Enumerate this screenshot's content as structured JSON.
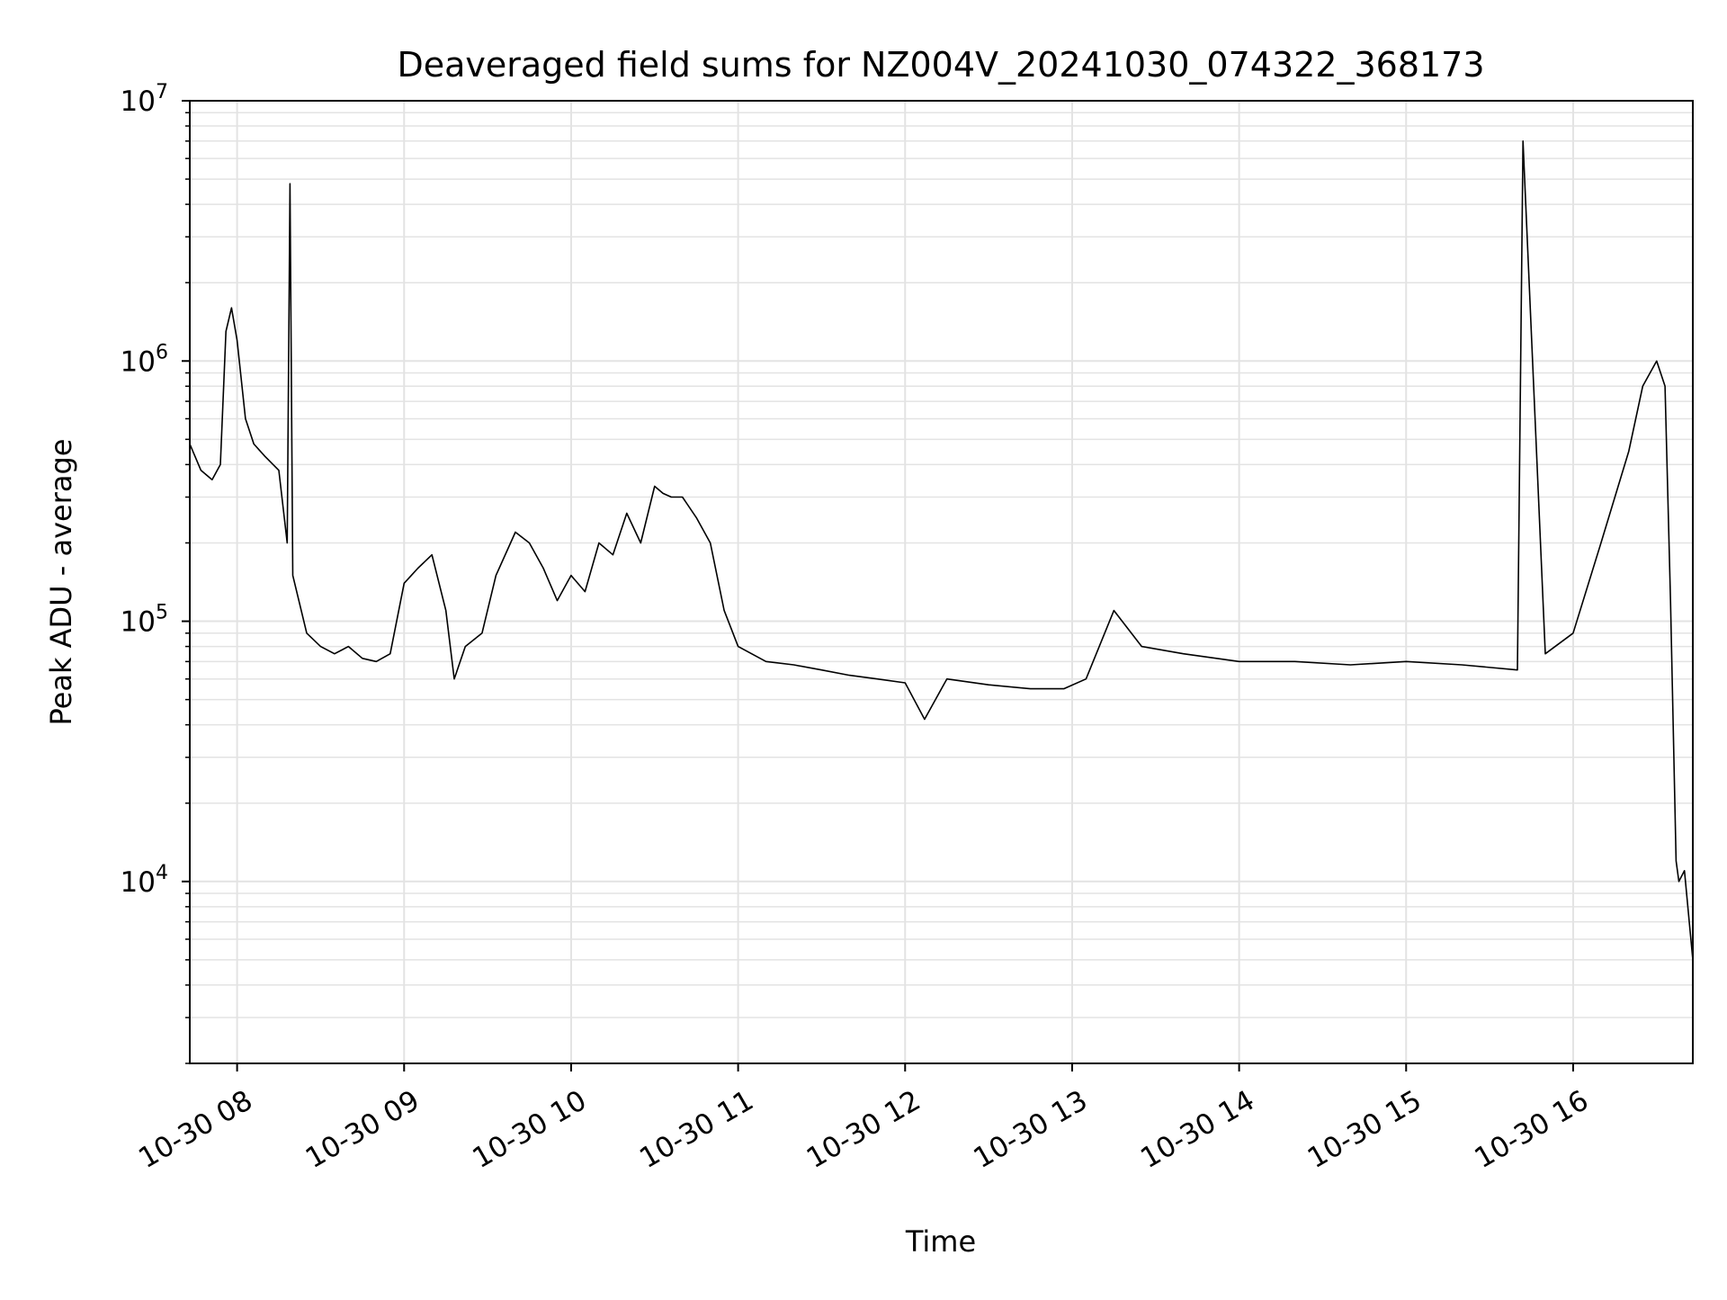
{
  "chart_data": {
    "type": "line",
    "title": "Deaveraged field sums for NZ004V_20241030_074322_368173",
    "xlabel": "Time",
    "ylabel": "Peak ADU - average",
    "y_scale": "log",
    "ylim": [
      2000,
      10000000
    ],
    "xlim": [
      "2024-10-30 07:43",
      "2024-10-30 16:43"
    ],
    "grid": true,
    "legend": "none",
    "colors": {
      "line": "#000000",
      "grid": "#e3e3e3",
      "axes": "#000000",
      "background": "#ffffff"
    },
    "x_ticks": [
      {
        "value": "2024-10-30 08:00",
        "label": "10-30 08"
      },
      {
        "value": "2024-10-30 09:00",
        "label": "10-30 09"
      },
      {
        "value": "2024-10-30 10:00",
        "label": "10-30 10"
      },
      {
        "value": "2024-10-30 11:00",
        "label": "10-30 11"
      },
      {
        "value": "2024-10-30 12:00",
        "label": "10-30 12"
      },
      {
        "value": "2024-10-30 13:00",
        "label": "10-30 13"
      },
      {
        "value": "2024-10-30 14:00",
        "label": "10-30 14"
      },
      {
        "value": "2024-10-30 15:00",
        "label": "10-30 15"
      },
      {
        "value": "2024-10-30 16:00",
        "label": "10-30 16"
      }
    ],
    "y_ticks": [
      {
        "value": 10000,
        "base": "10",
        "exp": "4"
      },
      {
        "value": 100000,
        "base": "10",
        "exp": "5"
      },
      {
        "value": 1000000,
        "base": "10",
        "exp": "6"
      },
      {
        "value": 10000000,
        "base": "10",
        "exp": "7"
      }
    ],
    "series": [
      {
        "x": [
          "2024-10-30 07:43",
          "2024-10-30 07:47",
          "2024-10-30 07:51",
          "2024-10-30 07:54",
          "2024-10-30 07:56",
          "2024-10-30 07:58",
          "2024-10-30 08:00",
          "2024-10-30 08:03",
          "2024-10-30 08:06",
          "2024-10-30 08:10",
          "2024-10-30 08:15",
          "2024-10-30 08:18",
          "2024-10-30 08:19",
          "2024-10-30 08:20",
          "2024-10-30 08:25",
          "2024-10-30 08:30",
          "2024-10-30 08:35",
          "2024-10-30 08:40",
          "2024-10-30 08:45",
          "2024-10-30 08:50",
          "2024-10-30 08:55",
          "2024-10-30 09:00",
          "2024-10-30 09:05",
          "2024-10-30 09:10",
          "2024-10-30 09:15",
          "2024-10-30 09:18",
          "2024-10-30 09:22",
          "2024-10-30 09:28",
          "2024-10-30 09:33",
          "2024-10-30 09:40",
          "2024-10-30 09:45",
          "2024-10-30 09:50",
          "2024-10-30 09:55",
          "2024-10-30 10:00",
          "2024-10-30 10:05",
          "2024-10-30 10:10",
          "2024-10-30 10:15",
          "2024-10-30 10:20",
          "2024-10-30 10:25",
          "2024-10-30 10:30",
          "2024-10-30 10:33",
          "2024-10-30 10:36",
          "2024-10-30 10:40",
          "2024-10-30 10:45",
          "2024-10-30 10:50",
          "2024-10-30 10:55",
          "2024-10-30 11:00",
          "2024-10-30 11:10",
          "2024-10-30 11:20",
          "2024-10-30 11:30",
          "2024-10-30 11:40",
          "2024-10-30 11:50",
          "2024-10-30 12:00",
          "2024-10-30 12:07",
          "2024-10-30 12:15",
          "2024-10-30 12:30",
          "2024-10-30 12:45",
          "2024-10-30 12:57",
          "2024-10-30 13:05",
          "2024-10-30 13:15",
          "2024-10-30 13:25",
          "2024-10-30 13:40",
          "2024-10-30 14:00",
          "2024-10-30 14:20",
          "2024-10-30 14:40",
          "2024-10-30 15:00",
          "2024-10-30 15:20",
          "2024-10-30 15:40",
          "2024-10-30 15:42",
          "2024-10-30 15:50",
          "2024-10-30 16:00",
          "2024-10-30 16:10",
          "2024-10-30 16:20",
          "2024-10-30 16:25",
          "2024-10-30 16:30",
          "2024-10-30 16:33",
          "2024-10-30 16:35",
          "2024-10-30 16:37",
          "2024-10-30 16:38",
          "2024-10-30 16:40",
          "2024-10-30 16:43"
        ],
        "y": [
          480000,
          380000,
          350000,
          400000,
          1300000,
          1600000,
          1200000,
          600000,
          480000,
          430000,
          380000,
          200000,
          4800000,
          150000,
          90000,
          80000,
          75000,
          80000,
          72000,
          70000,
          75000,
          140000,
          160000,
          180000,
          110000,
          60000,
          80000,
          90000,
          150000,
          220000,
          200000,
          160000,
          120000,
          150000,
          130000,
          200000,
          180000,
          260000,
          200000,
          330000,
          310000,
          300000,
          300000,
          250000,
          200000,
          110000,
          80000,
          70000,
          68000,
          65000,
          62000,
          60000,
          58000,
          42000,
          60000,
          57000,
          55000,
          55000,
          60000,
          110000,
          80000,
          75000,
          70000,
          70000,
          68000,
          70000,
          68000,
          65000,
          7000000,
          75000,
          90000,
          200000,
          450000,
          800000,
          1000000,
          800000,
          120000,
          12000,
          10000,
          11000,
          5000
        ]
      }
    ]
  }
}
